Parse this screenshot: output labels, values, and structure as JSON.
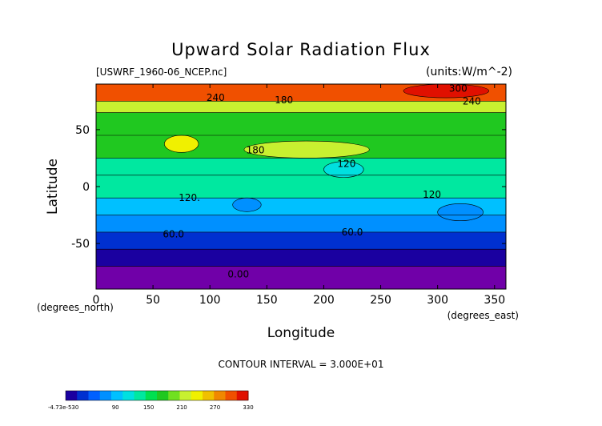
{
  "chart_data": {
    "type": "heatmap",
    "title": "Upward Solar Radiation Flux",
    "file_label": "[USWRF_1960-06_NCEP.nc]",
    "units_label": "(units:W/m^-2)",
    "xlabel": "Longitude",
    "ylabel": "Latitude",
    "x_unit_label": "(degrees_east)",
    "y_unit_label": "(degrees_north)",
    "xlim": [
      0,
      360
    ],
    "ylim": [
      -90,
      90
    ],
    "x_ticks": [
      0,
      50,
      100,
      150,
      200,
      250,
      300,
      350
    ],
    "y_ticks": [
      -50,
      0,
      50
    ],
    "contour_interval_text": "CONTOUR INTERVAL = 3.000E+01",
    "contour_labels": [
      {
        "text": "240",
        "lon": 105,
        "lat": 78
      },
      {
        "text": "180",
        "lon": 165,
        "lat": 76
      },
      {
        "text": "300",
        "lon": 318,
        "lat": 86
      },
      {
        "text": "240",
        "lon": 330,
        "lat": 75
      },
      {
        "text": "180",
        "lon": 140,
        "lat": 32
      },
      {
        "text": "120",
        "lon": 220,
        "lat": 20
      },
      {
        "text": "120.",
        "lon": 82,
        "lat": -10
      },
      {
        "text": "120",
        "lon": 295,
        "lat": -7
      },
      {
        "text": "60.0",
        "lon": 68,
        "lat": -42
      },
      {
        "text": "60.0",
        "lon": 225,
        "lat": -40
      },
      {
        "text": "0.00",
        "lon": 125,
        "lat": -77
      }
    ],
    "lat_bands": [
      {
        "lat_top": 90,
        "lat_bottom": 75,
        "value": 300
      },
      {
        "lat_top": 75,
        "lat_bottom": 65,
        "value": 210
      },
      {
        "lat_top": 65,
        "lat_bottom": 45,
        "value": 165
      },
      {
        "lat_top": 45,
        "lat_bottom": 25,
        "value": 175
      },
      {
        "lat_top": 25,
        "lat_bottom": 10,
        "value": 140
      },
      {
        "lat_top": 10,
        "lat_bottom": -10,
        "value": 125
      },
      {
        "lat_top": -10,
        "lat_bottom": -25,
        "value": 95
      },
      {
        "lat_top": -25,
        "lat_bottom": -40,
        "value": 65
      },
      {
        "lat_top": -40,
        "lat_bottom": -55,
        "value": 35
      },
      {
        "lat_top": -55,
        "lat_bottom": -70,
        "value": 15
      },
      {
        "lat_top": -70,
        "lat_bottom": -90,
        "value": -5
      }
    ],
    "features": [
      {
        "lon0": 270,
        "lon1": 345,
        "lat0": 78,
        "lat1": 90,
        "value": 320
      },
      {
        "lon0": 130,
        "lon1": 240,
        "lat0": 25,
        "lat1": 40,
        "value": 215
      },
      {
        "lon0": 60,
        "lon1": 90,
        "lat0": 30,
        "lat1": 45,
        "value": 240
      },
      {
        "lon0": 200,
        "lon1": 235,
        "lat0": 8,
        "lat1": 22,
        "value": 120
      },
      {
        "lon0": 120,
        "lon1": 145,
        "lat0": -22,
        "lat1": -10,
        "value": 65
      },
      {
        "lon0": 300,
        "lon1": 340,
        "lat0": -30,
        "lat1": -15,
        "value": 65
      }
    ]
  },
  "colorbar": {
    "min_label": "-4.73e-530",
    "tick_labels": [
      "90",
      "150",
      "210",
      "270",
      "330"
    ],
    "colors": [
      "#1a00a0",
      "#0030d0",
      "#0060ff",
      "#0090ff",
      "#00c0ff",
      "#00e0e0",
      "#00e8a0",
      "#00e050",
      "#20c820",
      "#70e020",
      "#c8f030",
      "#f0f000",
      "#f0c000",
      "#f08800",
      "#f05000",
      "#e01000"
    ]
  }
}
